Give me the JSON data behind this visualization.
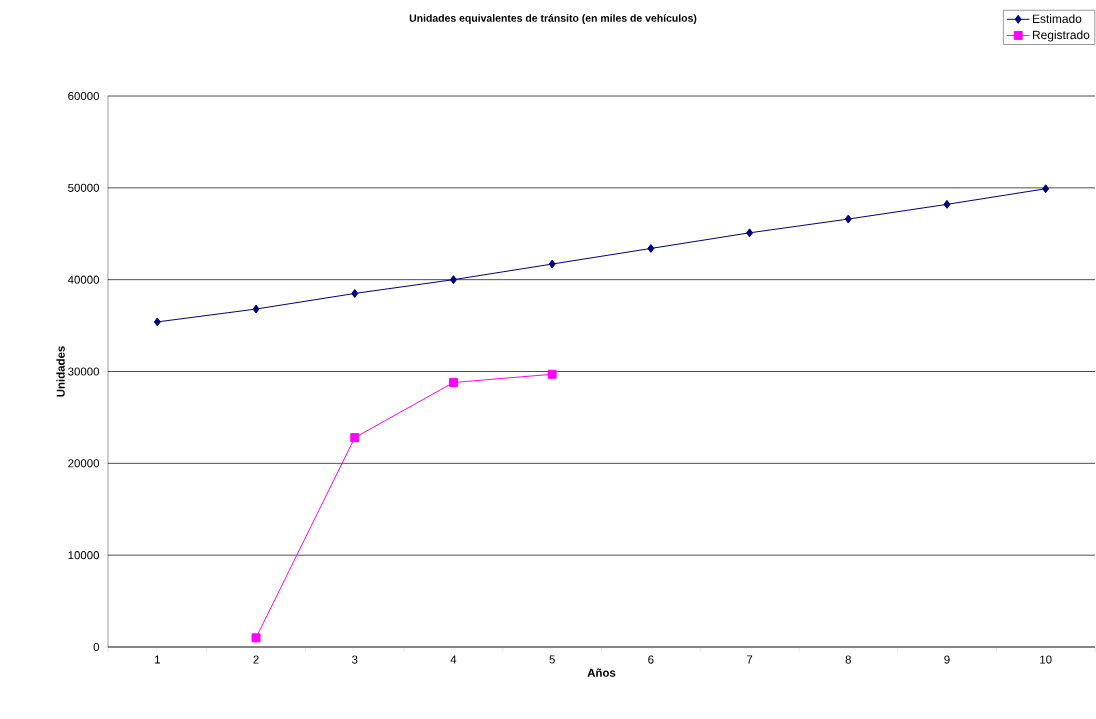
{
  "chart_data": {
    "type": "line",
    "title": "Unidades equivalentes de tránsito (en miles de vehículos)",
    "xlabel": "Años",
    "ylabel": "Unidades",
    "categories": [
      "1",
      "2",
      "3",
      "4",
      "5",
      "6",
      "7",
      "8",
      "9",
      "10"
    ],
    "series": [
      {
        "name": "Estimado",
        "color": "#000080",
        "marker": "diamond",
        "values": [
          35400,
          36800,
          38500,
          40000,
          41700,
          43400,
          45100,
          46600,
          48200,
          49900
        ]
      },
      {
        "name": "Registrado",
        "color": "#ff00ff",
        "marker": "square",
        "values": [
          null,
          1000,
          22800,
          28800,
          29700,
          null,
          null,
          null,
          null,
          null
        ]
      }
    ],
    "ylim": [
      0,
      60000
    ],
    "yticks": [
      0,
      10000,
      20000,
      30000,
      40000,
      50000,
      60000
    ],
    "grid": "y",
    "legend": "top right"
  }
}
